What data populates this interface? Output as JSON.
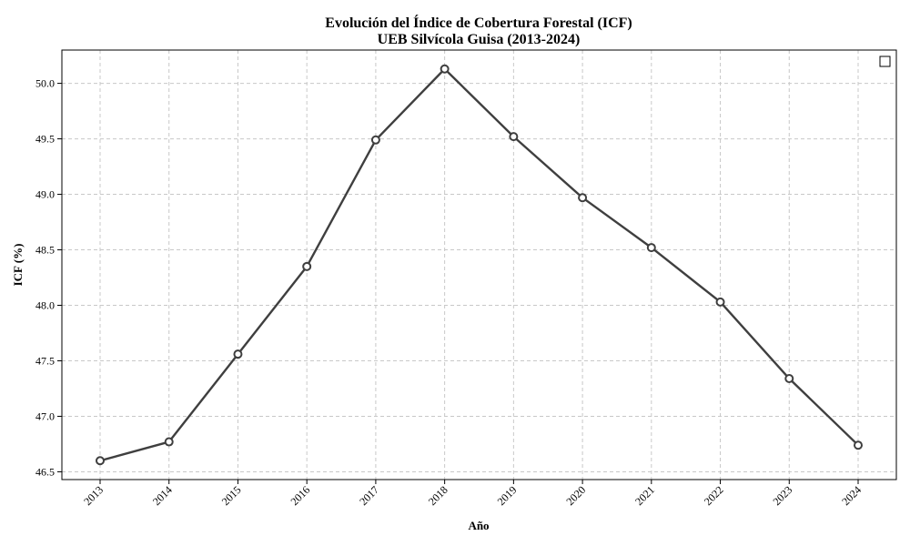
{
  "chart_data": {
    "type": "line",
    "title": "Evolución del Índice de Cobertura Forestal (ICF)",
    "subtitle": "UEB Silvícola Guisa (2013-2024)",
    "xlabel": "Año",
    "ylabel": "ICF (%)",
    "x": [
      "2013",
      "2014",
      "2015",
      "2016",
      "2017",
      "2018",
      "2019",
      "2020",
      "2021",
      "2022",
      "2023",
      "2024"
    ],
    "series": [
      {
        "values": [
          46.6,
          46.77,
          47.56,
          48.35,
          49.49,
          50.13,
          49.52,
          48.97,
          48.52,
          48.03,
          47.34,
          46.74
        ],
        "color": "#3f3f3f",
        "marker": "circle"
      }
    ],
    "ylim": [
      46.43,
      50.3
    ],
    "yticks": [
      "46.5",
      "47.0",
      "47.5",
      "48.0",
      "48.5",
      "49.0",
      "49.5",
      "50.0"
    ],
    "grid": true,
    "legend": "top-right"
  }
}
